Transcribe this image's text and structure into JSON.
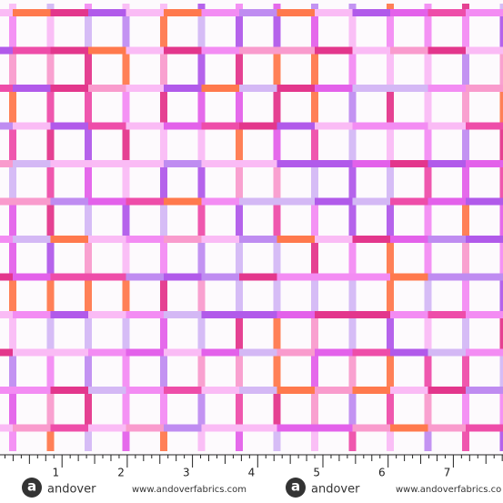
{
  "ruler": {
    "labels": [
      "1",
      "2",
      "3",
      "4",
      "5",
      "6",
      "7"
    ]
  },
  "brand": {
    "logo_letter": "a",
    "name": "andover",
    "website": "www.andoverfabrics.com",
    "website_cut": "www.andoverfabrics.co"
  }
}
